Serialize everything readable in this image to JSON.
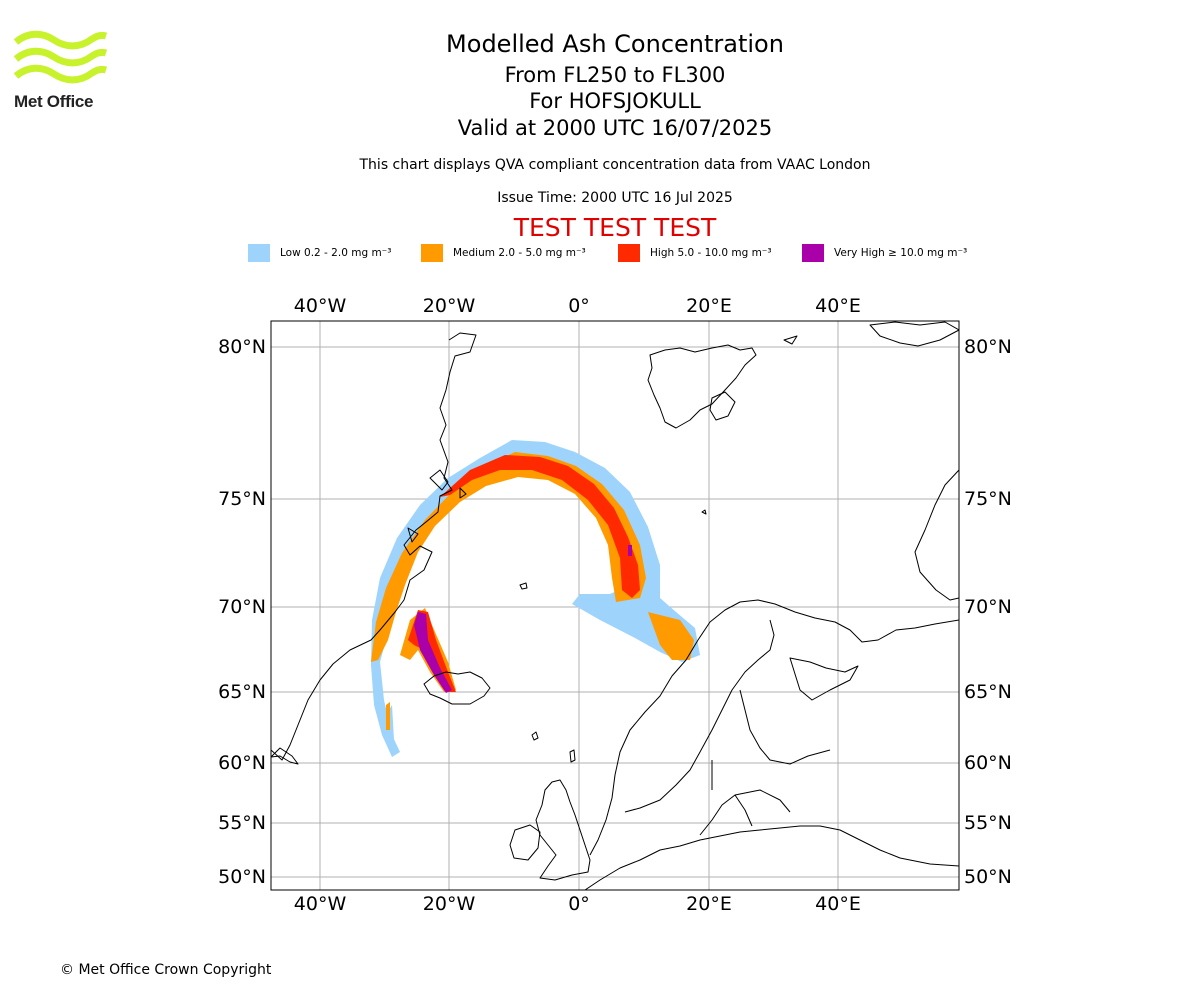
{
  "logo": {
    "text": "Met Office"
  },
  "header": {
    "title": "Modelled Ash Concentration",
    "levels": "From FL250 to FL300",
    "volcano": "For HOFSJOKULL",
    "valid": "Valid at 2000 UTC 16/07/2025",
    "note": "This chart displays QVA compliant concentration data from VAAC London",
    "issue_time": "Issue Time: 2000 UTC 16 Jul 2025",
    "test_banner": "TEST TEST TEST"
  },
  "legend": [
    {
      "label": "Low 0.2 - 2.0 mg m⁻³",
      "color": "#9ed3fb"
    },
    {
      "label": "Medium 2.0 - 5.0 mg m⁻³",
      "color": "#ff9a00"
    },
    {
      "label": "High 5.0 - 10.0 mg m⁻³",
      "color": "#ff2a00"
    },
    {
      "label": "Very High ≥ 10.0 mg m⁻³",
      "color": "#aa00aa"
    }
  ],
  "map": {
    "lon_ticks": [
      "40°W",
      "20°W",
      "0°",
      "20°E",
      "40°E"
    ],
    "lat_ticks": [
      "80°N",
      "75°N",
      "70°N",
      "65°N",
      "60°N",
      "55°N",
      "50°N"
    ],
    "gridlines": true
  },
  "footer": {
    "copyright": "© Met Office Crown Copyright"
  }
}
